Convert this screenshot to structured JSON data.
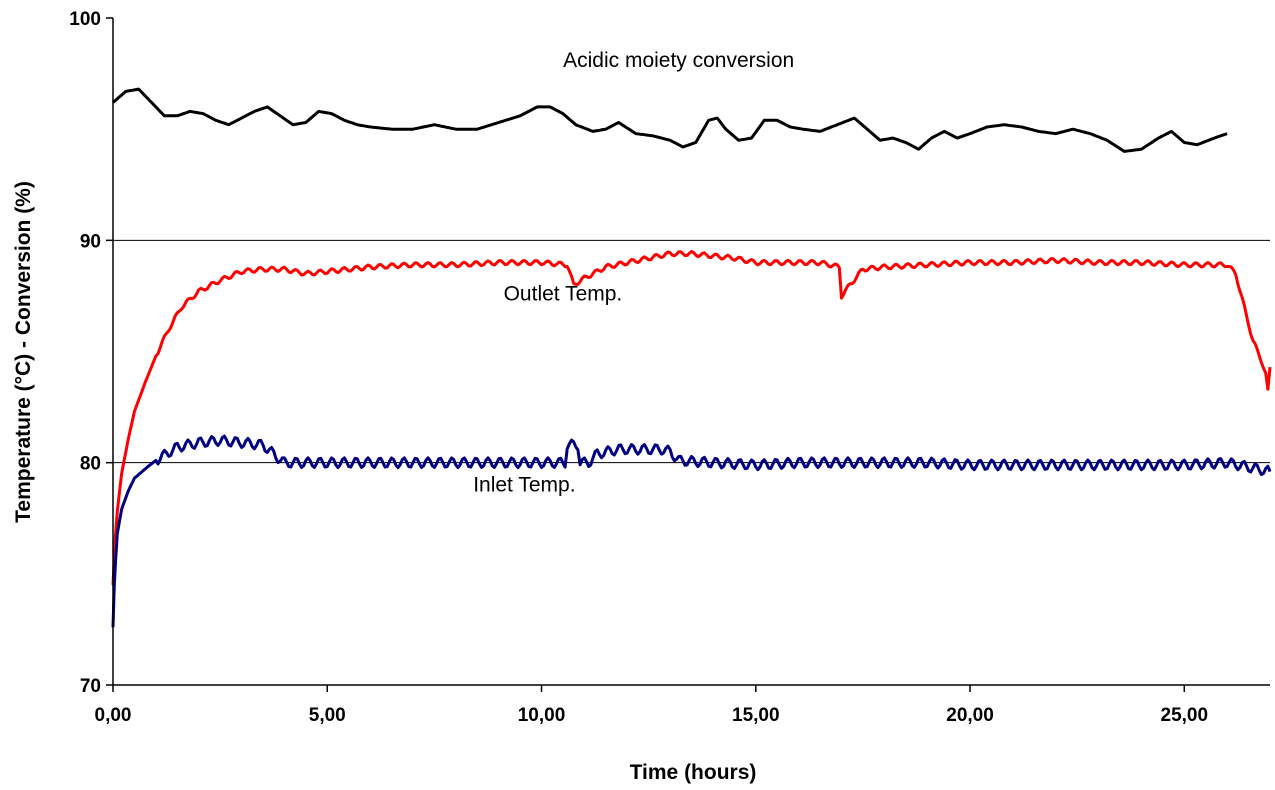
{
  "chart_data": {
    "type": "line",
    "title": "",
    "xlabel": "Time (hours)",
    "ylabel": "Temperature (°C) - Conversion (%)",
    "xlim": [
      0,
      27
    ],
    "ylim": [
      70,
      100
    ],
    "x_ticks": [
      {
        "value": 0,
        "label": "0,00"
      },
      {
        "value": 5,
        "label": "5,00"
      },
      {
        "value": 10,
        "label": "10,00"
      },
      {
        "value": 15,
        "label": "15,00"
      },
      {
        "value": 20,
        "label": "20,00"
      },
      {
        "value": 25,
        "label": "25,00"
      }
    ],
    "y_ticks": [
      {
        "value": 70,
        "label": "70"
      },
      {
        "value": 80,
        "label": "80"
      },
      {
        "value": 90,
        "label": "90"
      },
      {
        "value": 100,
        "label": "100"
      }
    ],
    "gridlines_y": [
      80,
      90
    ],
    "legend": "none",
    "annotations": [
      {
        "text": "Acidic moiety conversion",
        "x": 13.2,
        "y": 97.8
      },
      {
        "text": "Outlet Temp.",
        "x": 10.5,
        "y": 87.3
      },
      {
        "text": "Inlet Temp.",
        "x": 9.6,
        "y": 78.7
      }
    ],
    "series": [
      {
        "key": "conversion",
        "color": "#000000",
        "oscillation": 0,
        "points": [
          [
            0,
            96.2
          ],
          [
            0.3,
            96.7
          ],
          [
            0.6,
            96.8
          ],
          [
            0.9,
            96.2
          ],
          [
            1.2,
            95.6
          ],
          [
            1.5,
            95.6
          ],
          [
            1.8,
            95.8
          ],
          [
            2.1,
            95.7
          ],
          [
            2.4,
            95.4
          ],
          [
            2.7,
            95.2
          ],
          [
            3.0,
            95.5
          ],
          [
            3.3,
            95.8
          ],
          [
            3.6,
            96.0
          ],
          [
            3.9,
            95.6
          ],
          [
            4.2,
            95.2
          ],
          [
            4.5,
            95.3
          ],
          [
            4.8,
            95.8
          ],
          [
            5.1,
            95.7
          ],
          [
            5.4,
            95.4
          ],
          [
            5.7,
            95.2
          ],
          [
            6.0,
            95.1
          ],
          [
            6.5,
            95.0
          ],
          [
            7.0,
            95.0
          ],
          [
            7.5,
            95.2
          ],
          [
            8.0,
            95.0
          ],
          [
            8.5,
            95.0
          ],
          [
            9.0,
            95.3
          ],
          [
            9.5,
            95.6
          ],
          [
            9.9,
            96.0
          ],
          [
            10.2,
            96.0
          ],
          [
            10.5,
            95.7
          ],
          [
            10.8,
            95.2
          ],
          [
            11.2,
            94.9
          ],
          [
            11.5,
            95.0
          ],
          [
            11.8,
            95.3
          ],
          [
            12.2,
            94.8
          ],
          [
            12.6,
            94.7
          ],
          [
            13.0,
            94.5
          ],
          [
            13.3,
            94.2
          ],
          [
            13.6,
            94.4
          ],
          [
            13.9,
            95.4
          ],
          [
            14.1,
            95.5
          ],
          [
            14.3,
            95.0
          ],
          [
            14.6,
            94.5
          ],
          [
            14.9,
            94.6
          ],
          [
            15.2,
            95.4
          ],
          [
            15.5,
            95.4
          ],
          [
            15.8,
            95.1
          ],
          [
            16.1,
            95.0
          ],
          [
            16.5,
            94.9
          ],
          [
            16.9,
            95.2
          ],
          [
            17.3,
            95.5
          ],
          [
            17.6,
            95.0
          ],
          [
            17.9,
            94.5
          ],
          [
            18.2,
            94.6
          ],
          [
            18.5,
            94.4
          ],
          [
            18.8,
            94.1
          ],
          [
            19.1,
            94.6
          ],
          [
            19.4,
            94.9
          ],
          [
            19.7,
            94.6
          ],
          [
            20.0,
            94.8
          ],
          [
            20.4,
            95.1
          ],
          [
            20.8,
            95.2
          ],
          [
            21.2,
            95.1
          ],
          [
            21.6,
            94.9
          ],
          [
            22.0,
            94.8
          ],
          [
            22.4,
            95.0
          ],
          [
            22.8,
            94.8
          ],
          [
            23.2,
            94.5
          ],
          [
            23.6,
            94.0
          ],
          [
            24.0,
            94.1
          ],
          [
            24.4,
            94.6
          ],
          [
            24.7,
            94.9
          ],
          [
            25.0,
            94.4
          ],
          [
            25.3,
            94.3
          ],
          [
            25.7,
            94.6
          ],
          [
            26.0,
            94.8
          ]
        ]
      },
      {
        "key": "outlet",
        "color": "#ff0000",
        "oscillation": 0.1,
        "points": [
          [
            0,
            74.5
          ],
          [
            0.05,
            76.5
          ],
          [
            0.1,
            77.8
          ],
          [
            0.2,
            79.5
          ],
          [
            0.35,
            81.0
          ],
          [
            0.5,
            82.3
          ],
          [
            0.75,
            83.6
          ],
          [
            1.0,
            84.8
          ],
          [
            1.3,
            86.0
          ],
          [
            1.6,
            87.0
          ],
          [
            2.0,
            87.7
          ],
          [
            2.5,
            88.2
          ],
          [
            3.0,
            88.6
          ],
          [
            3.5,
            88.7
          ],
          [
            4.0,
            88.7
          ],
          [
            4.5,
            88.5
          ],
          [
            5.0,
            88.6
          ],
          [
            6.0,
            88.8
          ],
          [
            7.0,
            88.9
          ],
          [
            8.0,
            88.9
          ],
          [
            9.0,
            89.0
          ],
          [
            10.0,
            89.0
          ],
          [
            10.6,
            88.9
          ],
          [
            10.75,
            88.0
          ],
          [
            11.0,
            88.3
          ],
          [
            11.5,
            88.8
          ],
          [
            12.0,
            89.0
          ],
          [
            12.5,
            89.2
          ],
          [
            13.0,
            89.4
          ],
          [
            13.5,
            89.4
          ],
          [
            14.0,
            89.3
          ],
          [
            14.5,
            89.2
          ],
          [
            15.0,
            89.0
          ],
          [
            16.0,
            89.0
          ],
          [
            16.5,
            89.0
          ],
          [
            16.95,
            88.8
          ],
          [
            17.0,
            87.5
          ],
          [
            17.2,
            88.0
          ],
          [
            17.5,
            88.7
          ],
          [
            18.0,
            88.8
          ],
          [
            19.0,
            88.9
          ],
          [
            20.0,
            89.0
          ],
          [
            21.0,
            89.0
          ],
          [
            22.0,
            89.1
          ],
          [
            23.0,
            89.0
          ],
          [
            24.0,
            89.0
          ],
          [
            25.0,
            88.9
          ],
          [
            26.0,
            88.9
          ],
          [
            26.2,
            88.5
          ],
          [
            26.4,
            87.0
          ],
          [
            26.6,
            85.5
          ],
          [
            26.8,
            84.6
          ],
          [
            26.9,
            84.0
          ],
          [
            26.95,
            83.2
          ],
          [
            27.0,
            84.3
          ]
        ]
      },
      {
        "key": "inlet",
        "color": "#000080",
        "oscillation": 0.22,
        "points": [
          [
            0,
            72.6
          ],
          [
            0.03,
            74.5
          ],
          [
            0.06,
            75.6
          ],
          [
            0.1,
            76.8
          ],
          [
            0.2,
            77.9
          ],
          [
            0.35,
            78.7
          ],
          [
            0.5,
            79.3
          ],
          [
            0.8,
            79.8
          ],
          [
            1.0,
            80.1
          ],
          [
            1.5,
            80.7
          ],
          [
            2.0,
            80.9
          ],
          [
            2.5,
            81.0
          ],
          [
            3.0,
            80.9
          ],
          [
            3.5,
            80.8
          ],
          [
            3.8,
            80.3
          ],
          [
            4.0,
            80.0
          ],
          [
            5.0,
            80.0
          ],
          [
            6.0,
            80.0
          ],
          [
            7.0,
            80.0
          ],
          [
            8.0,
            80.0
          ],
          [
            9.0,
            80.0
          ],
          [
            10.0,
            80.0
          ],
          [
            10.55,
            80.0
          ],
          [
            10.6,
            80.8
          ],
          [
            10.85,
            80.8
          ],
          [
            10.9,
            80.0
          ],
          [
            11.1,
            80.0
          ],
          [
            11.3,
            80.4
          ],
          [
            11.8,
            80.6
          ],
          [
            12.3,
            80.6
          ],
          [
            12.8,
            80.6
          ],
          [
            13.0,
            80.5
          ],
          [
            13.2,
            80.1
          ],
          [
            14.0,
            80.0
          ],
          [
            15.0,
            79.9
          ],
          [
            16.0,
            80.0
          ],
          [
            17.0,
            80.0
          ],
          [
            18.0,
            80.0
          ],
          [
            19.0,
            80.0
          ],
          [
            20.0,
            79.9
          ],
          [
            21.0,
            79.9
          ],
          [
            22.0,
            79.9
          ],
          [
            23.0,
            79.9
          ],
          [
            24.0,
            79.9
          ],
          [
            25.0,
            79.9
          ],
          [
            26.0,
            80.0
          ],
          [
            26.5,
            79.8
          ],
          [
            27.0,
            79.6
          ]
        ]
      }
    ]
  }
}
